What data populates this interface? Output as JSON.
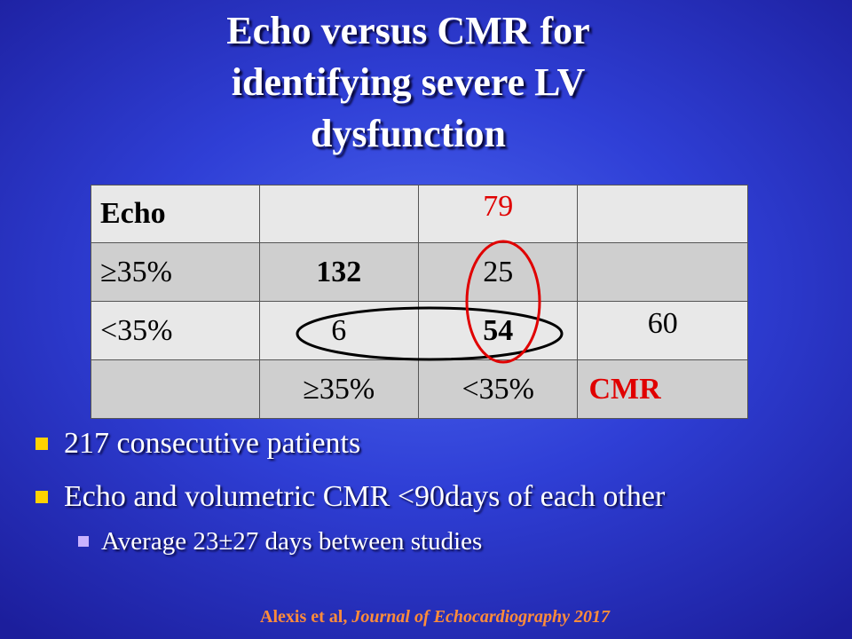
{
  "slide": {
    "title_lines": [
      "Echo versus CMR for",
      "identifying severe LV",
      "dysfunction"
    ]
  },
  "table": {
    "rows": [
      [
        "Echo",
        "",
        "79",
        ""
      ],
      [
        "≥35%",
        "132",
        "25",
        ""
      ],
      [
        "<35%",
        "6",
        "54",
        "60"
      ],
      [
        "",
        "≥35%",
        "<35%",
        "CMR"
      ]
    ]
  },
  "bullets": {
    "items": [
      "217 consecutive patients",
      "Echo and volumetric CMR <90days of each other"
    ],
    "sub_items": [
      "Average 23±27 days between studies"
    ]
  },
  "citation": {
    "authors": "Alexis et al,",
    "journal": "Journal of Echocardiography 2017"
  },
  "colors": {
    "bullet": "#ffd200",
    "sub_bullet": "#c9b2ff",
    "highlight_red": "#e00000",
    "citation": "#ff8c3a"
  }
}
